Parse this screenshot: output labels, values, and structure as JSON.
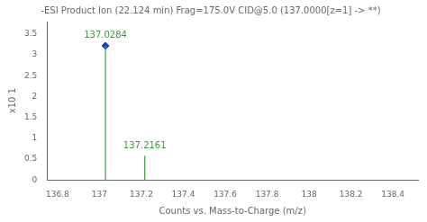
{
  "chart_data": {
    "type": "stem",
    "title": "-ESI Product Ion (22.124 min) Frag=175.0V CID@5.0 (137.0000[z=1] -> **)",
    "xlabel": "Counts vs. Mass-to-Charge (m/z)",
    "ylabel": "x10 1",
    "xlim": [
      136.75,
      138.52
    ],
    "ylim": [
      0,
      3.8
    ],
    "xticks": [
      136.8,
      137,
      137.2,
      137.4,
      137.6,
      137.8,
      138,
      138.2,
      138.4
    ],
    "yticks": [
      0,
      0.5,
      1,
      1.5,
      2,
      2.5,
      3,
      3.5
    ],
    "grid": false,
    "series": [
      {
        "type": "stem",
        "color": "#3a9a3a",
        "x": [
          137.0284,
          137.2161
        ],
        "values": [
          3.22,
          0.58
        ]
      },
      {
        "type": "scatter",
        "marker": "diamond",
        "color": "#1a3ecc",
        "x": [
          137.0284
        ],
        "values": [
          3.22
        ]
      }
    ],
    "annotations": [
      {
        "text": "137.0284",
        "x": 137.0284,
        "y": 3.22,
        "color": "#3a9a3a"
      },
      {
        "text": "137.2161",
        "x": 137.2161,
        "y": 0.58,
        "color": "#3a9a3a"
      }
    ]
  }
}
